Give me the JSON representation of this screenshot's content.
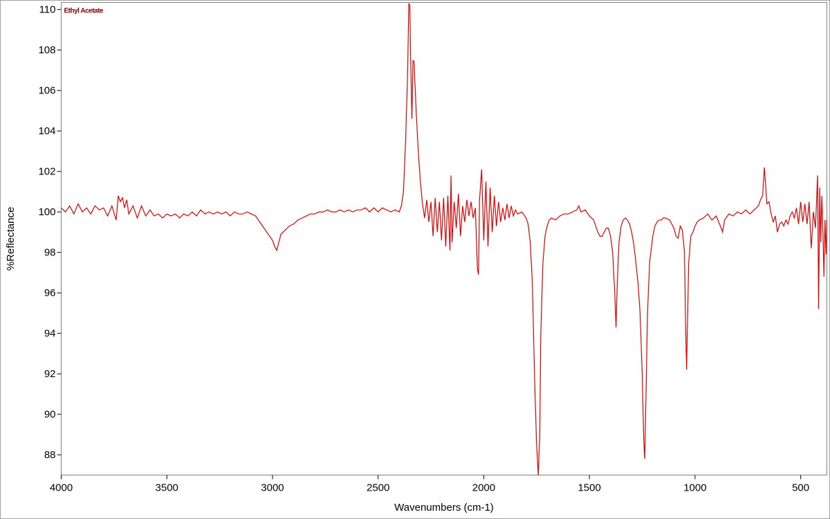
{
  "chart_data": {
    "type": "line",
    "xlabel": "Wavenumbers (cm-1)",
    "ylabel": "%Reflectance",
    "xlim": [
      4000,
      376
    ],
    "ylim": [
      87,
      110.35
    ],
    "xticks": [
      4000,
      3500,
      3000,
      2500,
      2000,
      1500,
      1000,
      500
    ],
    "yticks": [
      88,
      90,
      92,
      94,
      96,
      98,
      100,
      102,
      104,
      106,
      108,
      110
    ],
    "legend": "top-left",
    "series": [
      {
        "name": "Ethyl Acetate",
        "color": "#e00000",
        "x": [
          4000,
          3980,
          3960,
          3940,
          3920,
          3900,
          3880,
          3860,
          3840,
          3820,
          3800,
          3780,
          3760,
          3740,
          3730,
          3720,
          3710,
          3700,
          3690,
          3680,
          3660,
          3640,
          3620,
          3600,
          3580,
          3560,
          3540,
          3520,
          3500,
          3480,
          3460,
          3440,
          3420,
          3400,
          3380,
          3360,
          3340,
          3320,
          3300,
          3280,
          3260,
          3240,
          3220,
          3200,
          3180,
          3160,
          3140,
          3120,
          3100,
          3080,
          3060,
          3040,
          3020,
          3000,
          2990,
          2980,
          2970,
          2960,
          2940,
          2920,
          2900,
          2880,
          2860,
          2840,
          2820,
          2800,
          2780,
          2760,
          2740,
          2720,
          2700,
          2680,
          2660,
          2640,
          2620,
          2600,
          2580,
          2560,
          2540,
          2520,
          2500,
          2480,
          2460,
          2440,
          2420,
          2400,
          2390,
          2380,
          2370,
          2360,
          2355,
          2350,
          2345,
          2340,
          2335,
          2330,
          2320,
          2310,
          2300,
          2290,
          2280,
          2270,
          2260,
          2250,
          2240,
          2230,
          2220,
          2210,
          2200,
          2190,
          2180,
          2170,
          2160,
          2155,
          2150,
          2140,
          2130,
          2120,
          2110,
          2100,
          2090,
          2080,
          2070,
          2060,
          2050,
          2040,
          2030,
          2025,
          2020,
          2010,
          2000,
          1990,
          1980,
          1970,
          1960,
          1950,
          1940,
          1930,
          1920,
          1910,
          1900,
          1890,
          1880,
          1870,
          1860,
          1850,
          1840,
          1820,
          1800,
          1790,
          1780,
          1770,
          1760,
          1750,
          1742,
          1735,
          1730,
          1720,
          1710,
          1700,
          1690,
          1680,
          1660,
          1640,
          1620,
          1600,
          1580,
          1560,
          1550,
          1540,
          1520,
          1500,
          1480,
          1470,
          1460,
          1450,
          1440,
          1430,
          1420,
          1410,
          1400,
          1390,
          1380,
          1374,
          1368,
          1360,
          1350,
          1340,
          1330,
          1320,
          1310,
          1300,
          1290,
          1280,
          1270,
          1260,
          1250,
          1243,
          1238,
          1232,
          1225,
          1215,
          1200,
          1190,
          1180,
          1170,
          1160,
          1150,
          1140,
          1120,
          1110,
          1100,
          1090,
          1080,
          1070,
          1060,
          1050,
          1045,
          1040,
          1035,
          1030,
          1020,
          1010,
          1000,
          990,
          980,
          960,
          940,
          920,
          900,
          880,
          870,
          860,
          840,
          820,
          800,
          780,
          760,
          740,
          720,
          700,
          690,
          680,
          672,
          665,
          660,
          650,
          640,
          630,
          620,
          610,
          600,
          590,
          580,
          570,
          560,
          550,
          540,
          530,
          520,
          510,
          500,
          490,
          480,
          470,
          460,
          450,
          440,
          430,
          420,
          415,
          410,
          405,
          400,
          395,
          390,
          385,
          380,
          376
        ],
        "values": [
          100.2,
          100.0,
          100.3,
          99.9,
          100.4,
          100.0,
          100.2,
          99.9,
          100.3,
          100.1,
          100.2,
          99.8,
          100.3,
          99.6,
          100.8,
          100.5,
          100.7,
          100.2,
          100.6,
          99.9,
          100.3,
          99.7,
          100.3,
          99.8,
          100.1,
          99.8,
          99.9,
          99.7,
          99.9,
          99.8,
          99.9,
          99.7,
          99.9,
          99.8,
          100.0,
          99.8,
          100.1,
          99.9,
          100.0,
          99.9,
          100.0,
          99.9,
          100.0,
          99.8,
          100.0,
          99.9,
          99.9,
          100.0,
          99.9,
          99.8,
          99.5,
          99.2,
          98.9,
          98.6,
          98.3,
          98.1,
          98.5,
          98.9,
          99.1,
          99.3,
          99.4,
          99.6,
          99.7,
          99.8,
          99.9,
          99.9,
          100.0,
          100.0,
          100.1,
          100.0,
          100.0,
          100.1,
          100.0,
          100.1,
          100.0,
          100.1,
          100.1,
          100.2,
          100.0,
          100.2,
          100.0,
          100.2,
          100.1,
          100.0,
          100.1,
          100.0,
          100.3,
          101.0,
          103.5,
          107.0,
          110.3,
          110.2,
          107.0,
          104.6,
          107.5,
          107.4,
          105.0,
          103.0,
          101.5,
          100.4,
          99.7,
          100.6,
          99.5,
          100.5,
          98.8,
          100.7,
          99.0,
          100.5,
          98.6,
          100.7,
          98.3,
          100.8,
          98.1,
          101.8,
          98.5,
          100.5,
          99.2,
          100.9,
          98.8,
          100.3,
          99.5,
          100.6,
          99.8,
          100.5,
          99.7,
          100.2,
          97.2,
          96.9,
          100.6,
          102.1,
          98.6,
          101.5,
          98.3,
          101.2,
          99.0,
          100.8,
          99.3,
          100.5,
          99.5,
          100.2,
          99.6,
          100.4,
          99.7,
          100.3,
          99.8,
          100.1,
          99.9,
          100.0,
          99.7,
          99.4,
          98.5,
          96.5,
          92.0,
          88.5,
          87.0,
          89.0,
          94.0,
          97.5,
          98.8,
          99.3,
          99.6,
          99.7,
          99.6,
          99.8,
          99.9,
          99.9,
          100.0,
          100.1,
          100.3,
          100.0,
          100.1,
          99.8,
          99.6,
          99.3,
          99.0,
          98.8,
          98.8,
          99.0,
          99.2,
          99.2,
          98.8,
          98.0,
          96.0,
          94.3,
          96.5,
          98.5,
          99.3,
          99.6,
          99.7,
          99.6,
          99.4,
          99.0,
          98.4,
          97.5,
          96.5,
          95.0,
          92.0,
          88.8,
          87.8,
          91.0,
          95.0,
          97.5,
          98.8,
          99.3,
          99.5,
          99.6,
          99.6,
          99.7,
          99.7,
          99.6,
          99.4,
          99.2,
          98.8,
          98.7,
          99.3,
          99.1,
          98.0,
          94.5,
          92.2,
          95.0,
          97.5,
          98.8,
          99.0,
          99.3,
          99.5,
          99.6,
          99.7,
          99.9,
          99.6,
          99.8,
          99.3,
          99.0,
          99.6,
          99.9,
          99.8,
          100.0,
          99.9,
          100.1,
          99.9,
          100.1,
          100.3,
          100.6,
          100.8,
          102.2,
          101.2,
          100.4,
          100.5,
          99.9,
          99.5,
          99.8,
          99.0,
          99.4,
          99.5,
          99.3,
          99.6,
          99.4,
          99.8,
          100.0,
          99.7,
          100.2,
          99.4,
          100.5,
          99.5,
          100.4,
          99.4,
          100.5,
          98.2,
          100.0,
          99.2,
          101.8,
          95.2,
          101.2,
          98.5,
          100.8,
          99.2,
          96.8,
          99.6,
          97.9,
          99.6
        ]
      }
    ]
  }
}
